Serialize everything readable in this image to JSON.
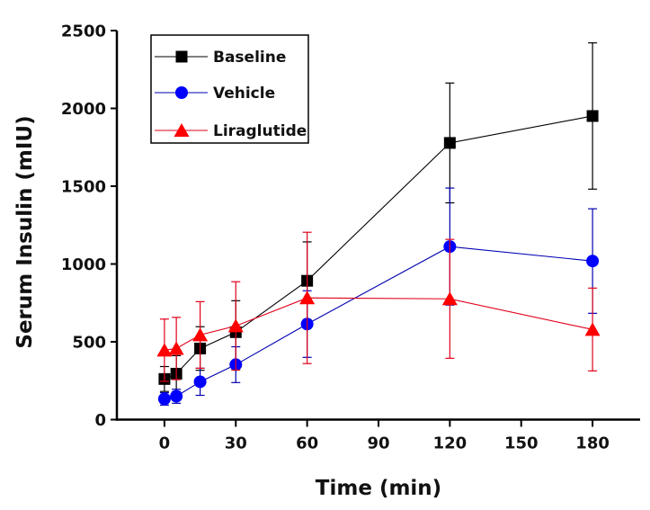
{
  "chart_data": {
    "type": "line",
    "title": "",
    "xlabel": "Time (min)",
    "ylabel": "Serum Insulin (mIU)",
    "xlim": [
      -20,
      200
    ],
    "ylim": [
      0,
      2500
    ],
    "xticks": [
      0,
      30,
      60,
      90,
      120,
      150,
      180
    ],
    "yticks": [
      0,
      500,
      1000,
      1500,
      2000,
      2500
    ],
    "grid": false,
    "legend_position": "top-left",
    "x": [
      0,
      5,
      15,
      30,
      60,
      120,
      180
    ],
    "series": [
      {
        "name": "Baseline",
        "color": "#000000",
        "line_color": "#000000",
        "marker": "square",
        "values": [
          261,
          295,
          457,
          562,
          892,
          1778,
          1951
        ],
        "error": [
          80,
          116,
          140,
          202,
          250,
          385,
          470
        ]
      },
      {
        "name": "Vehicle",
        "color": "#0000ff",
        "line_color": "#0000b0",
        "marker": "circle",
        "values": [
          133,
          150,
          243,
          353,
          614,
          1112,
          1019
        ],
        "error": [
          40,
          45,
          87,
          115,
          214,
          376,
          336
        ]
      },
      {
        "name": "Liraglutide",
        "color": "#ff0000",
        "line_color": "#e0001a",
        "marker": "triangle",
        "values": [
          446,
          457,
          544,
          602,
          782,
          776,
          579
        ],
        "error": [
          200,
          200,
          214,
          284,
          422,
          382,
          266
        ]
      }
    ]
  }
}
